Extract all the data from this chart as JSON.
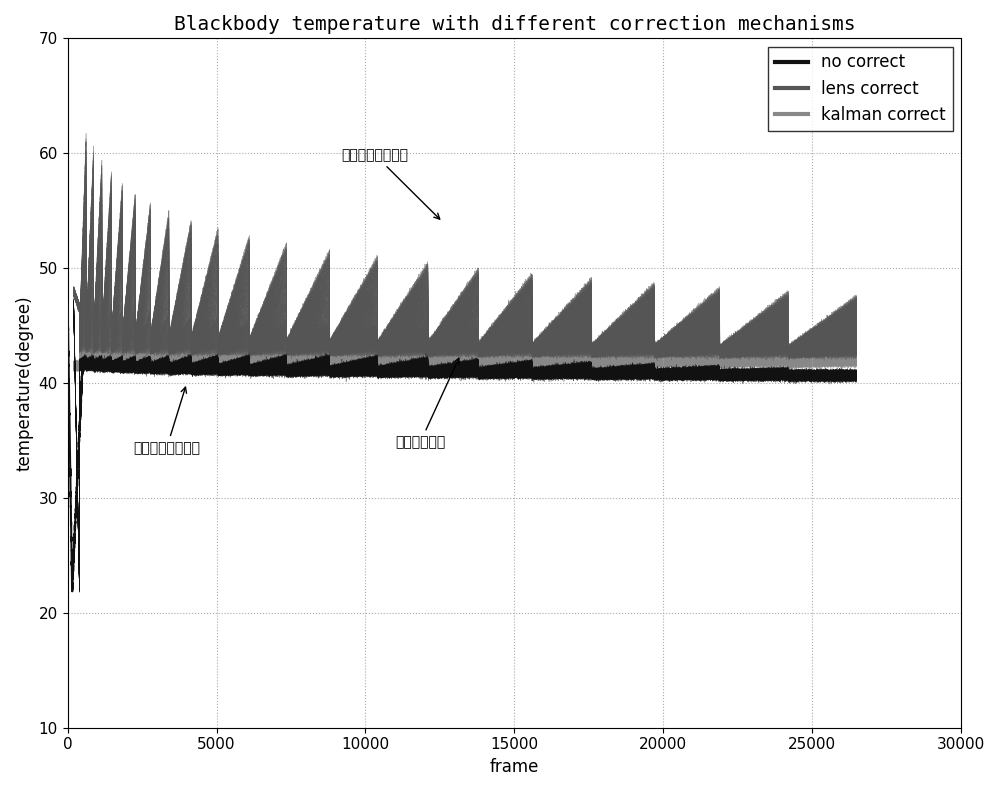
{
  "title": "Blackbody temperature with different correction mechanisms",
  "xlabel": "frame",
  "ylabel": "temperature(degree)",
  "xlim": [
    0,
    30000
  ],
  "ylim": [
    10,
    70
  ],
  "yticks": [
    10,
    20,
    30,
    40,
    50,
    60,
    70
  ],
  "xticks": [
    0,
    5000,
    10000,
    15000,
    20000,
    25000,
    30000
  ],
  "legend_labels": [
    "no correct",
    "lens correct",
    "kalman correct"
  ],
  "no_correct_color": "#111111",
  "lens_correct_color": "#555555",
  "kalman_correct_color": "#888888",
  "annotation_no_correct": "不加温漂补偿机制",
  "annotation_lens_correct": "迭代温漂补偿机制",
  "annotation_kalman": "卡尔曼滤波器",
  "background_color": "#ffffff",
  "grid_color": "#aaaaaa",
  "title_fontsize": 14,
  "label_fontsize": 12,
  "tick_fontsize": 11
}
